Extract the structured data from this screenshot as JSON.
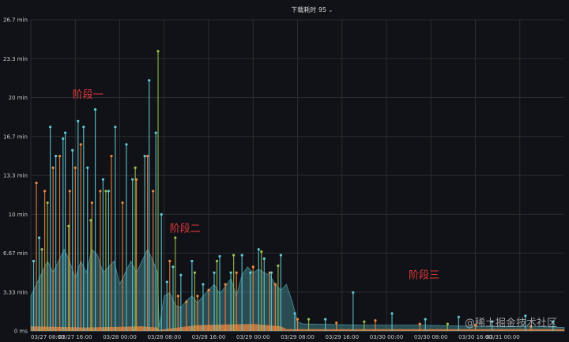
{
  "panel": {
    "title": "下载耗时 95",
    "chevron": "⌄"
  },
  "watermark": "@稀土掘金技术社区",
  "colors": {
    "background": "#111217",
    "grid": "#2a2c31",
    "axis_text": "#c7c9cc",
    "cyan": "#5fcbd6",
    "orange": "#f0883e",
    "green": "#9ac24f",
    "yellow": "#e8c04a",
    "annotation": "#e0383a"
  },
  "chart_data": {
    "type": "line",
    "title": "下载耗时 95",
    "xlabel": "",
    "ylabel": "",
    "x_ticks": [
      "03/27 08:00",
      "03/27 16:00",
      "03/28 00:00",
      "03/28 08:00",
      "03/28 16:00",
      "03/29 00:00",
      "03/29 08:00",
      "03/29 16:00",
      "03/30 00:00",
      "03/30 08:00",
      "03/30 16:00",
      "03/31 00:00"
    ],
    "y_ticks": [
      "0 ms",
      "3.33 min",
      "6.67 min",
      "10 min",
      "13.3 min",
      "16.7 min",
      "20 min",
      "23.3 min",
      "26.7 min"
    ],
    "ylim_min": [
      0,
      26.7
    ],
    "xlim_hours_from_0327_0800": [
      0,
      96
    ],
    "grid": true,
    "annotations": [
      {
        "text": "阶段一",
        "x_hours": 7.5,
        "y_min": 20
      },
      {
        "text": "阶段二",
        "x_hours": 25,
        "y_min": 8.5
      },
      {
        "text": "阶段三",
        "x_hours": 68,
        "y_min": 4.5
      }
    ],
    "series_cyan_spikes": {
      "name": "",
      "x_hours": [
        0.5,
        1.5,
        3.5,
        4.5,
        5.8,
        6.2,
        7.5,
        8.5,
        9.5,
        10.2,
        11.6,
        13,
        14,
        15.2,
        17.2,
        18.3,
        20.5,
        21.3,
        22.5,
        23.5,
        24.5,
        25.6,
        27,
        29,
        31,
        33,
        34,
        36,
        38,
        39.5,
        41,
        42,
        43.3,
        45,
        47.5,
        53,
        58,
        65,
        71,
        77,
        83,
        89,
        94
      ],
      "y_min": [
        6,
        8,
        17.5,
        15,
        16.5,
        17,
        15.5,
        18,
        17.5,
        14,
        19,
        13,
        12,
        17.5,
        16,
        13,
        15,
        21.5,
        17,
        10,
        4.2,
        5.5,
        4.8,
        6,
        4,
        5,
        6.4,
        5,
        6.5,
        5,
        7,
        6.2,
        5,
        6.5,
        1.5,
        1,
        3.3,
        1.5,
        1,
        1.2,
        0.8,
        1.3,
        0.8
      ]
    },
    "series_cyan_band_top": {
      "x_hours": [
        0,
        1,
        2,
        3,
        4,
        5,
        6,
        7,
        8,
        9,
        10,
        11,
        12,
        13,
        14,
        15,
        16,
        17,
        18,
        19,
        20,
        21,
        22,
        22.8,
        23.1,
        24,
        25,
        26,
        27,
        28,
        29,
        30,
        31,
        32,
        33,
        34,
        35,
        36,
        37,
        38,
        39,
        40,
        41,
        42,
        43,
        44,
        45,
        46,
        47,
        48,
        49,
        50,
        60,
        70,
        80,
        90,
        96
      ],
      "y_min": [
        3,
        4,
        5,
        6,
        5,
        6,
        7,
        6,
        4.5,
        6,
        5,
        7,
        6.5,
        5,
        5.5,
        6,
        4,
        5,
        6,
        5,
        6,
        7,
        6,
        5,
        0.3,
        3,
        3.3,
        2.2,
        2,
        2.6,
        3,
        2.4,
        3,
        3.5,
        4,
        3.2,
        3.8,
        4.5,
        3,
        4.8,
        5.5,
        5,
        5.3,
        5,
        4.8,
        4,
        3.5,
        4,
        2.6,
        0.8,
        0.6,
        0.6,
        0.5,
        0.5,
        0.4,
        0.4,
        0.3
      ]
    },
    "series_orange_spikes": {
      "name": "",
      "x_hours": [
        1,
        2.5,
        4,
        5.2,
        7,
        8,
        9,
        11,
        12.5,
        14.5,
        16.5,
        19,
        21,
        22,
        25,
        26.5,
        28,
        30,
        32,
        35,
        37,
        40,
        43,
        44,
        48,
        55,
        62,
        70,
        80,
        90
      ],
      "y_min": [
        12.7,
        12,
        14,
        15,
        12,
        14,
        16,
        11,
        12,
        15,
        11,
        13,
        15,
        12,
        6,
        3,
        2.5,
        3,
        3.5,
        4,
        5,
        5.5,
        5,
        4,
        1,
        0.7,
        0.9,
        0.6,
        0.5,
        0.4
      ]
    },
    "series_orange_base": {
      "x_hours": [
        0,
        10,
        20,
        22.8,
        23.2,
        30,
        40,
        45,
        46,
        96
      ],
      "y_min": [
        0.4,
        0.3,
        0.4,
        0.3,
        0.1,
        0.5,
        0.6,
        0.4,
        0.15,
        0.15
      ]
    },
    "series_green_spikes": {
      "name": "",
      "x_hours": [
        2,
        3,
        6.8,
        10.8,
        13.5,
        18.8,
        22.9,
        26,
        29.5,
        33.5,
        36.5,
        41.5,
        44.5,
        50,
        60,
        75
      ],
      "y_min": [
        7,
        11,
        9,
        9.5,
        12,
        14,
        24,
        8,
        5,
        6,
        6.5,
        6.8,
        5.6,
        1,
        0.8,
        0.6
      ]
    }
  }
}
